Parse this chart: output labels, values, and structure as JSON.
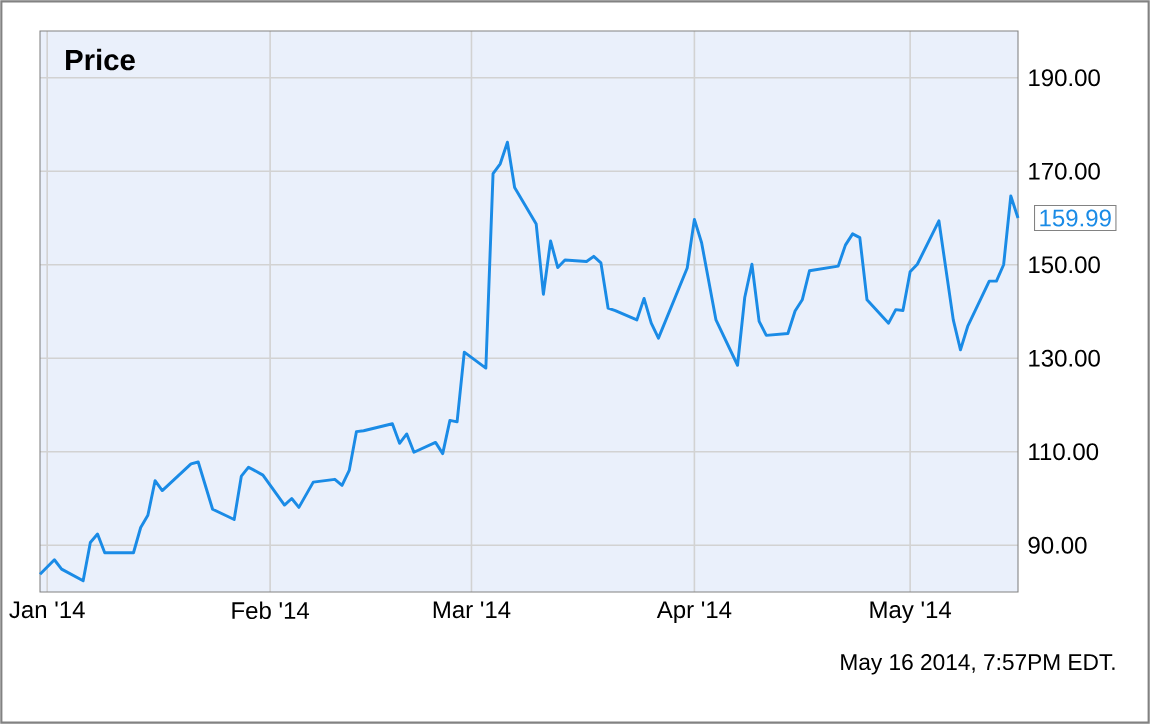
{
  "chart_data": {
    "type": "line",
    "title": "Price",
    "x": [
      "2013-12-31",
      "2014-01-02",
      "2014-01-03",
      "2014-01-06",
      "2014-01-07",
      "2014-01-08",
      "2014-01-09",
      "2014-01-13",
      "2014-01-14",
      "2014-01-15",
      "2014-01-16",
      "2014-01-17",
      "2014-01-21",
      "2014-01-22",
      "2014-01-24",
      "2014-01-27",
      "2014-01-28",
      "2014-01-29",
      "2014-01-31",
      "2014-02-03",
      "2014-02-04",
      "2014-02-05",
      "2014-02-07",
      "2014-02-10",
      "2014-02-11",
      "2014-02-12",
      "2014-02-13",
      "2014-02-14",
      "2014-02-18",
      "2014-02-19",
      "2014-02-20",
      "2014-02-21",
      "2014-02-24",
      "2014-02-25",
      "2014-02-26",
      "2014-02-27",
      "2014-02-28",
      "2014-03-03",
      "2014-03-04",
      "2014-03-05",
      "2014-03-06",
      "2014-03-07",
      "2014-03-10",
      "2014-03-11",
      "2014-03-12",
      "2014-03-13",
      "2014-03-14",
      "2014-03-17",
      "2014-03-18",
      "2014-03-19",
      "2014-03-20",
      "2014-03-21",
      "2014-03-24",
      "2014-03-25",
      "2014-03-26",
      "2014-03-27",
      "2014-03-31",
      "2014-04-01",
      "2014-04-02",
      "2014-04-04",
      "2014-04-07",
      "2014-04-08",
      "2014-04-09",
      "2014-04-10",
      "2014-04-11",
      "2014-04-14",
      "2014-04-15",
      "2014-04-16",
      "2014-04-17",
      "2014-04-21",
      "2014-04-22",
      "2014-04-23",
      "2014-04-24",
      "2014-04-25",
      "2014-04-28",
      "2014-04-29",
      "2014-04-30",
      "2014-05-01",
      "2014-05-02",
      "2014-05-05",
      "2014-05-07",
      "2014-05-08",
      "2014-05-09",
      "2014-05-12",
      "2014-05-13",
      "2014-05-14",
      "2014-05-15",
      "2014-05-16"
    ],
    "series": [
      {
        "color": "#1a8be6",
        "values": [
          83.8,
          86.9,
          84.9,
          82.4,
          90.6,
          92.4,
          88.4,
          88.4,
          93.8,
          96.4,
          103.8,
          101.7,
          107.4,
          107.8,
          97.7,
          95.5,
          104.8,
          106.7,
          105,
          98.6,
          100,
          98.1,
          103.5,
          104.1,
          102.8,
          106,
          114.3,
          114.5,
          116,
          111.8,
          113.8,
          109.9,
          112,
          109.6,
          116.7,
          116.4,
          131.3,
          127.9,
          169.5,
          171.6,
          176.2,
          166.5,
          158.7,
          143.7,
          155.1,
          149.4,
          151,
          150.7,
          151.8,
          150.4,
          140.7,
          140.2,
          138.2,
          142.8,
          137.5,
          134.3,
          149.3,
          159.7,
          154.7,
          138.2,
          128.5,
          143,
          150.1,
          137.9,
          134.9,
          135.3,
          140.1,
          142.5,
          148.7,
          149.7,
          154.2,
          156.6,
          155.8,
          142.5,
          137.5,
          140.4,
          140.2,
          148.5,
          150.1,
          159.4,
          138.2,
          131.8,
          136.8,
          146.5,
          146.5,
          150,
          164.7,
          159.99
        ],
        "value_labels": [
          null,
          null,
          null,
          null,
          null,
          null,
          null,
          null,
          null,
          null,
          null,
          null,
          null,
          null,
          null,
          null,
          null,
          null,
          null,
          null,
          null,
          null,
          null,
          null,
          null,
          null,
          null,
          null,
          null,
          null,
          null,
          null,
          null,
          null,
          null,
          null,
          null,
          null,
          null,
          null,
          null,
          null,
          null,
          null,
          null,
          null,
          null,
          null,
          null,
          null,
          null,
          null,
          null,
          null,
          null,
          null,
          null,
          null,
          null,
          null,
          null,
          null,
          null,
          null,
          null,
          null,
          null,
          null,
          null,
          null,
          null,
          null,
          null,
          null,
          null,
          null,
          null,
          null,
          null,
          null,
          null,
          null,
          null,
          null,
          null,
          null,
          null,
          "159.99"
        ]
      }
    ],
    "xlim": [
      "2013-12-31",
      "2014-05-16"
    ],
    "xticks": [
      {
        "value": "2014-01-01",
        "label": "Jan '14"
      },
      {
        "value": "2014-02-01",
        "label": "Feb '14"
      },
      {
        "value": "2014-03-01",
        "label": "Mar '14"
      },
      {
        "value": "2014-04-01",
        "label": "Apr '14"
      },
      {
        "value": "2014-05-01",
        "label": "May '14"
      }
    ],
    "ylim": [
      80,
      200
    ],
    "yticks": [
      {
        "value": 90,
        "label": "90.00"
      },
      {
        "value": 110,
        "label": "110.00"
      },
      {
        "value": 130,
        "label": "130.00"
      },
      {
        "value": 150,
        "label": "150.00"
      },
      {
        "value": 170,
        "label": "170.00"
      },
      {
        "value": 190,
        "label": "190.00"
      }
    ],
    "grid": true,
    "line_style": "solid",
    "marker": "none",
    "annotations": [
      "May 16 2014, 7:57PM EDT."
    ]
  }
}
